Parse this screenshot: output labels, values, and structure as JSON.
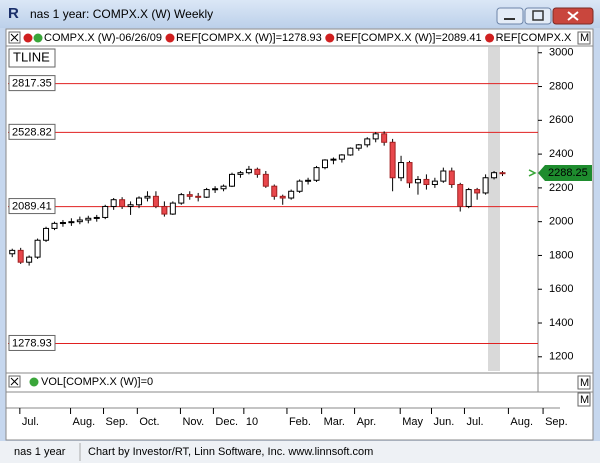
{
  "window": {
    "title": "nas 1 year: COMPX.X (W) Weekly",
    "app_letter": "R"
  },
  "status": {
    "left": "nas 1 year",
    "credit": "Chart by Investor/RT, Linn Software, Inc. www.linnsoft.com"
  },
  "chart_data": {
    "type": "candlestick",
    "legend": [
      "COMPX.X (W)-06/26/09",
      "REF[COMPX.X (W)]=1278.93",
      "REF[COMPX.X (W)]=2089.41",
      "REF[COMPX.X"
    ],
    "tline_label": "TLINE",
    "volume_label": "VOL[COMPX.X (W)]=0",
    "scale_marker": "M",
    "up_color": "#ffffff",
    "down_color": "#e8474c",
    "ref_color": "#e02020",
    "ylim": [
      1110,
      3040
    ],
    "yticks": [
      1200,
      1400,
      1600,
      1800,
      2000,
      2200,
      2400,
      2600,
      2800,
      3000
    ],
    "xlim": [
      -0.5,
      62.2
    ],
    "x_labels": [
      {
        "value": 0.9,
        "label": "Jul."
      },
      {
        "value": 6.9,
        "label": "Aug."
      },
      {
        "value": 10.8,
        "label": "Sep."
      },
      {
        "value": 14.8,
        "label": "Oct."
      },
      {
        "value": 19.9,
        "label": "Nov."
      },
      {
        "value": 23.8,
        "label": "Dec."
      },
      {
        "value": 27.4,
        "label": "10"
      },
      {
        "value": 32.5,
        "label": "Feb."
      },
      {
        "value": 36.6,
        "label": "Mar."
      },
      {
        "value": 40.5,
        "label": "Apr."
      },
      {
        "value": 45.9,
        "label": "May"
      },
      {
        "value": 49.6,
        "label": "Jun."
      },
      {
        "value": 53.5,
        "label": "Jul."
      },
      {
        "value": 58.7,
        "label": "Aug."
      },
      {
        "value": 62.8,
        "label": "Sep."
      }
    ],
    "ref_lines": [
      2817.35,
      2528.82,
      2089.41,
      1278.93
    ],
    "last_price": 2288.25,
    "candles": [
      {
        "open": 1810,
        "high": 1840,
        "low": 1790,
        "close": 1830
      },
      {
        "open": 1830,
        "high": 1845,
        "low": 1750,
        "close": 1760
      },
      {
        "open": 1760,
        "high": 1800,
        "low": 1740,
        "close": 1790
      },
      {
        "open": 1790,
        "high": 1900,
        "low": 1780,
        "close": 1890
      },
      {
        "open": 1890,
        "high": 1970,
        "low": 1880,
        "close": 1960
      },
      {
        "open": 1960,
        "high": 2000,
        "low": 1950,
        "close": 1990
      },
      {
        "open": 1990,
        "high": 2010,
        "low": 1970,
        "close": 1995
      },
      {
        "open": 1995,
        "high": 2020,
        "low": 1975,
        "close": 2000
      },
      {
        "open": 2000,
        "high": 2030,
        "low": 1985,
        "close": 2010
      },
      {
        "open": 2010,
        "high": 2035,
        "low": 1990,
        "close": 2020
      },
      {
        "open": 2020,
        "high": 2040,
        "low": 2000,
        "close": 2025
      },
      {
        "open": 2025,
        "high": 2100,
        "low": 2015,
        "close": 2090
      },
      {
        "open": 2090,
        "high": 2140,
        "low": 2070,
        "close": 2130
      },
      {
        "open": 2130,
        "high": 2145,
        "low": 2075,
        "close": 2090
      },
      {
        "open": 2090,
        "high": 2120,
        "low": 2040,
        "close": 2100
      },
      {
        "open": 2100,
        "high": 2150,
        "low": 2080,
        "close": 2140
      },
      {
        "open": 2140,
        "high": 2180,
        "low": 2120,
        "close": 2150
      },
      {
        "open": 2150,
        "high": 2180,
        "low": 2080,
        "close": 2090
      },
      {
        "open": 2090,
        "high": 2120,
        "low": 2030,
        "close": 2045
      },
      {
        "open": 2045,
        "high": 2120,
        "low": 2040,
        "close": 2110
      },
      {
        "open": 2110,
        "high": 2170,
        "low": 2100,
        "close": 2160
      },
      {
        "open": 2160,
        "high": 2180,
        "low": 2130,
        "close": 2150
      },
      {
        "open": 2150,
        "high": 2170,
        "low": 2120,
        "close": 2145
      },
      {
        "open": 2145,
        "high": 2200,
        "low": 2140,
        "close": 2190
      },
      {
        "open": 2190,
        "high": 2210,
        "low": 2170,
        "close": 2195
      },
      {
        "open": 2195,
        "high": 2220,
        "low": 2180,
        "close": 2210
      },
      {
        "open": 2210,
        "high": 2290,
        "low": 2205,
        "close": 2280
      },
      {
        "open": 2280,
        "high": 2300,
        "low": 2260,
        "close": 2290
      },
      {
        "open": 2290,
        "high": 2330,
        "low": 2280,
        "close": 2310
      },
      {
        "open": 2310,
        "high": 2320,
        "low": 2260,
        "close": 2280
      },
      {
        "open": 2280,
        "high": 2300,
        "low": 2200,
        "close": 2210
      },
      {
        "open": 2210,
        "high": 2220,
        "low": 2130,
        "close": 2150
      },
      {
        "open": 2150,
        "high": 2160,
        "low": 2100,
        "close": 2140
      },
      {
        "open": 2140,
        "high": 2190,
        "low": 2130,
        "close": 2180
      },
      {
        "open": 2180,
        "high": 2250,
        "low": 2170,
        "close": 2240
      },
      {
        "open": 2240,
        "high": 2260,
        "low": 2220,
        "close": 2245
      },
      {
        "open": 2245,
        "high": 2330,
        "low": 2235,
        "close": 2320
      },
      {
        "open": 2320,
        "high": 2370,
        "low": 2310,
        "close": 2365
      },
      {
        "open": 2365,
        "high": 2380,
        "low": 2340,
        "close": 2370
      },
      {
        "open": 2370,
        "high": 2400,
        "low": 2350,
        "close": 2395
      },
      {
        "open": 2395,
        "high": 2440,
        "low": 2390,
        "close": 2435
      },
      {
        "open": 2435,
        "high": 2460,
        "low": 2420,
        "close": 2455
      },
      {
        "open": 2455,
        "high": 2500,
        "low": 2440,
        "close": 2490
      },
      {
        "open": 2490,
        "high": 2530,
        "low": 2470,
        "close": 2520
      },
      {
        "open": 2520,
        "high": 2535,
        "low": 2450,
        "close": 2470
      },
      {
        "open": 2470,
        "high": 2490,
        "low": 2180,
        "close": 2260
      },
      {
        "open": 2260,
        "high": 2390,
        "low": 2240,
        "close": 2350
      },
      {
        "open": 2350,
        "high": 2360,
        "low": 2200,
        "close": 2230
      },
      {
        "open": 2230,
        "high": 2270,
        "low": 2160,
        "close": 2250
      },
      {
        "open": 2250,
        "high": 2280,
        "low": 2190,
        "close": 2220
      },
      {
        "open": 2220,
        "high": 2260,
        "low": 2200,
        "close": 2240
      },
      {
        "open": 2240,
        "high": 2320,
        "low": 2230,
        "close": 2300
      },
      {
        "open": 2300,
        "high": 2320,
        "low": 2200,
        "close": 2220
      },
      {
        "open": 2220,
        "high": 2230,
        "low": 2060,
        "close": 2090
      },
      {
        "open": 2090,
        "high": 2200,
        "low": 2080,
        "close": 2190
      },
      {
        "open": 2190,
        "high": 2200,
        "low": 2130,
        "close": 2170
      },
      {
        "open": 2170,
        "high": 2280,
        "low": 2160,
        "close": 2260
      },
      {
        "open": 2260,
        "high": 2300,
        "low": 2250,
        "close": 2290
      },
      {
        "open": 2290,
        "high": 2300,
        "low": 2270,
        "close": 2288.25
      }
    ]
  }
}
